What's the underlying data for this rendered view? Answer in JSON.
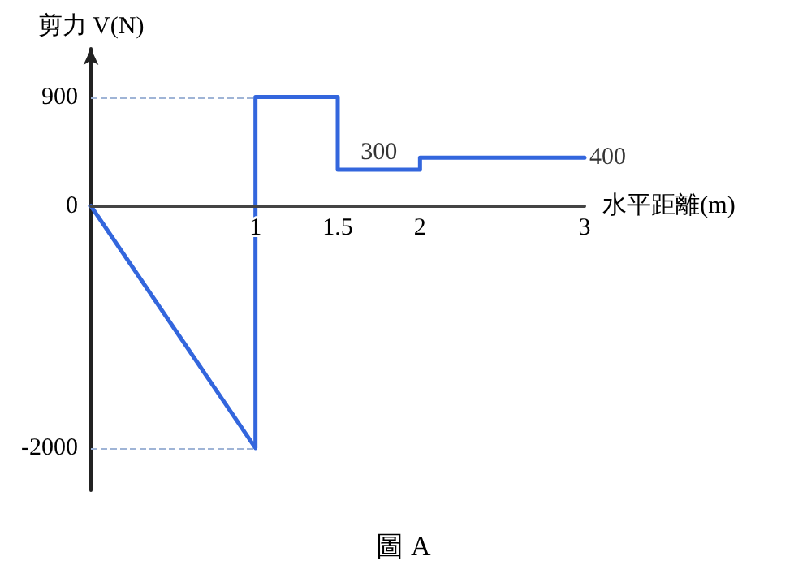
{
  "chart_data": {
    "type": "line",
    "title": "圖 A",
    "xlabel": "水平距離(m)",
    "ylabel": "剪力 V(N)",
    "series": [
      {
        "color": "#3366dd",
        "x": [
          0,
          1,
          1,
          1.5,
          1.5,
          2,
          2,
          3
        ],
        "values": [
          0,
          -2000,
          900,
          900,
          300,
          300,
          400,
          400
        ]
      }
    ],
    "xlim": [
      0,
      3
    ],
    "xticks": [
      1,
      1.5,
      2,
      3
    ],
    "ylim": [
      -2350,
      1300
    ],
    "yticks": [
      -2000,
      0,
      900
    ],
    "ref_lines": [
      {
        "axis": "y",
        "value": 900,
        "line_style": "dashed",
        "color": "#9fb4d6"
      },
      {
        "axis": "y",
        "value": -2000,
        "line_style": "dashed",
        "color": "#9fb4d6"
      }
    ],
    "annotations": [
      {
        "text": "300",
        "x": 1.75,
        "y": 300
      },
      {
        "text": "400",
        "x": 3,
        "y": 400
      }
    ],
    "grid": false,
    "marker": "none",
    "line_style": "solid"
  }
}
